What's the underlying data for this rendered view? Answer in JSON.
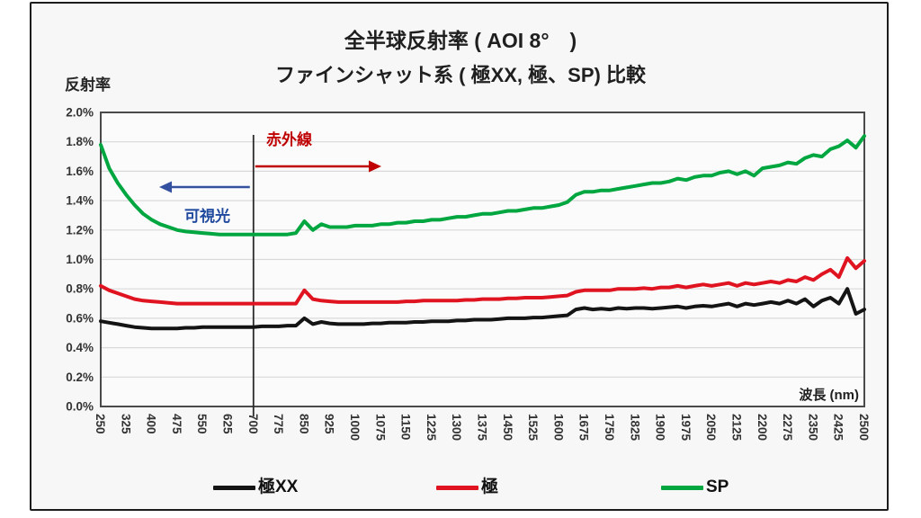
{
  "header": {
    "title": "全半球反射率 ( AOI 8°　)",
    "subtitle": "ファインシャット系 ( 極XX, 極、SP) 比較"
  },
  "chart_data": {
    "type": "line",
    "title": "全半球反射率 ( AOI 8°　)",
    "subtitle": "ファインシャット系 ( 極XX, 極、SP) 比較",
    "xlabel": "波長 (nm)",
    "ylabel": "反射率",
    "x_range": [
      250,
      2500
    ],
    "x_step": 25,
    "ylim": [
      0.0,
      2.0
    ],
    "grid": "horizontal",
    "x_ticks": [
      250,
      325,
      400,
      475,
      550,
      625,
      700,
      775,
      850,
      925,
      1000,
      1075,
      1150,
      1225,
      1300,
      1375,
      1450,
      1525,
      1600,
      1675,
      1750,
      1825,
      1900,
      1975,
      2050,
      2125,
      2200,
      2275,
      2350,
      2425,
      2500
    ],
    "y_tick_values": [
      0.0,
      0.2,
      0.4,
      0.6,
      0.8,
      1.0,
      1.2,
      1.4,
      1.6,
      1.8,
      2.0
    ],
    "y_tick_labels": [
      "0.0%",
      "0.2%",
      "0.4%",
      "0.6%",
      "0.8%",
      "1.0%",
      "1.2%",
      "1.4%",
      "1.6%",
      "1.8%",
      "2.0%"
    ],
    "annotations": {
      "boundary_nm": 700,
      "infrared": {
        "label": "赤外線",
        "color": "#c00000",
        "arrow": "right"
      },
      "visible": {
        "label": "可視光",
        "color": "#1f4a9e",
        "arrow_color": "#33519e",
        "arrow": "left"
      }
    },
    "series": [
      {
        "name": "極XX",
        "color": "#141414",
        "unit": "%",
        "values": [
          0.58,
          0.57,
          0.56,
          0.55,
          0.54,
          0.535,
          0.53,
          0.53,
          0.53,
          0.53,
          0.535,
          0.535,
          0.54,
          0.54,
          0.54,
          0.54,
          0.54,
          0.54,
          0.54,
          0.545,
          0.545,
          0.545,
          0.55,
          0.55,
          0.6,
          0.56,
          0.575,
          0.565,
          0.56,
          0.56,
          0.56,
          0.56,
          0.565,
          0.565,
          0.57,
          0.57,
          0.57,
          0.575,
          0.575,
          0.58,
          0.58,
          0.58,
          0.585,
          0.585,
          0.59,
          0.59,
          0.59,
          0.595,
          0.6,
          0.6,
          0.6,
          0.605,
          0.605,
          0.61,
          0.615,
          0.62,
          0.66,
          0.67,
          0.66,
          0.665,
          0.66,
          0.67,
          0.665,
          0.67,
          0.67,
          0.665,
          0.67,
          0.675,
          0.68,
          0.67,
          0.68,
          0.685,
          0.68,
          0.69,
          0.7,
          0.68,
          0.7,
          0.69,
          0.7,
          0.71,
          0.7,
          0.72,
          0.7,
          0.73,
          0.68,
          0.72,
          0.74,
          0.7,
          0.8,
          0.63,
          0.66
        ]
      },
      {
        "name": "極",
        "color": "#e01420",
        "unit": "%",
        "values": [
          0.82,
          0.79,
          0.77,
          0.75,
          0.73,
          0.72,
          0.715,
          0.71,
          0.705,
          0.7,
          0.7,
          0.7,
          0.7,
          0.7,
          0.7,
          0.7,
          0.7,
          0.7,
          0.7,
          0.7,
          0.7,
          0.7,
          0.7,
          0.7,
          0.79,
          0.73,
          0.72,
          0.715,
          0.71,
          0.71,
          0.71,
          0.71,
          0.71,
          0.71,
          0.71,
          0.71,
          0.715,
          0.715,
          0.72,
          0.72,
          0.72,
          0.72,
          0.72,
          0.725,
          0.725,
          0.73,
          0.73,
          0.73,
          0.735,
          0.735,
          0.74,
          0.74,
          0.74,
          0.745,
          0.75,
          0.755,
          0.78,
          0.79,
          0.79,
          0.79,
          0.79,
          0.8,
          0.8,
          0.8,
          0.805,
          0.8,
          0.81,
          0.81,
          0.82,
          0.81,
          0.82,
          0.83,
          0.82,
          0.83,
          0.84,
          0.82,
          0.84,
          0.83,
          0.84,
          0.85,
          0.84,
          0.86,
          0.85,
          0.88,
          0.86,
          0.9,
          0.93,
          0.88,
          1.01,
          0.94,
          0.99
        ]
      },
      {
        "name": "SP",
        "color": "#00a63f",
        "unit": "%",
        "values": [
          1.78,
          1.62,
          1.52,
          1.44,
          1.37,
          1.31,
          1.27,
          1.24,
          1.22,
          1.2,
          1.19,
          1.185,
          1.18,
          1.175,
          1.17,
          1.17,
          1.17,
          1.17,
          1.17,
          1.17,
          1.17,
          1.17,
          1.17,
          1.18,
          1.26,
          1.2,
          1.24,
          1.22,
          1.22,
          1.22,
          1.23,
          1.23,
          1.23,
          1.24,
          1.24,
          1.25,
          1.25,
          1.26,
          1.26,
          1.27,
          1.27,
          1.28,
          1.29,
          1.29,
          1.3,
          1.31,
          1.31,
          1.32,
          1.33,
          1.33,
          1.34,
          1.35,
          1.35,
          1.36,
          1.37,
          1.39,
          1.44,
          1.46,
          1.46,
          1.47,
          1.47,
          1.48,
          1.49,
          1.5,
          1.51,
          1.52,
          1.52,
          1.53,
          1.55,
          1.54,
          1.56,
          1.57,
          1.57,
          1.59,
          1.6,
          1.58,
          1.6,
          1.57,
          1.62,
          1.63,
          1.64,
          1.66,
          1.65,
          1.69,
          1.71,
          1.7,
          1.75,
          1.77,
          1.81,
          1.76,
          1.84
        ]
      }
    ],
    "style": {
      "grid_color": "#d9d9d9",
      "plot_border_color": "#4a4a4a",
      "plot_fill": "#fbfbfb",
      "tick_color": "#333333",
      "boundary_line_color": "#2b2b2b"
    }
  },
  "legend": {
    "items": [
      {
        "label": "極XX",
        "color": "#141414"
      },
      {
        "label": "極",
        "color": "#e01420"
      },
      {
        "label": "SP",
        "color": "#00a63f"
      }
    ]
  }
}
